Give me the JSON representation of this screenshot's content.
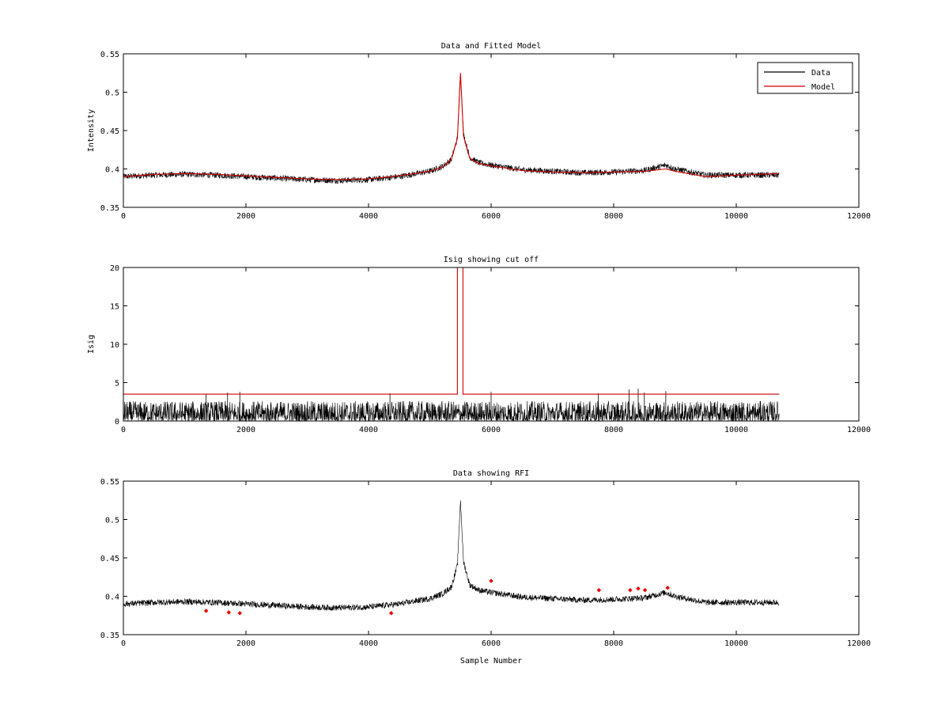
{
  "chart_data": [
    {
      "type": "line",
      "title": "Data and Fitted Model",
      "xlabel": "",
      "ylabel": "Intensity",
      "xlim": [
        0,
        12000
      ],
      "ylim": [
        0.35,
        0.55
      ],
      "xticks": [
        0,
        2000,
        4000,
        6000,
        8000,
        10000,
        12000
      ],
      "xtick_labels": [
        "0",
        "2000",
        "4000",
        "6000",
        "8000",
        "10000",
        "12000"
      ],
      "yticks": [
        0.35,
        0.4,
        0.45,
        0.5,
        0.55
      ],
      "ytick_labels": [
        "0.35",
        "0.4",
        "0.45",
        "0.5",
        "0.55"
      ],
      "legend": {
        "position": "top-right",
        "entries": [
          "Data",
          "Model"
        ]
      },
      "series": [
        {
          "name": "Data",
          "color": "#000000",
          "noise": 0.004,
          "x": [
            0,
            500,
            1000,
            1500,
            2000,
            2500,
            3000,
            3500,
            4000,
            4500,
            5000,
            5200,
            5350,
            5450,
            5500,
            5550,
            5650,
            5800,
            6000,
            6500,
            7000,
            7500,
            8000,
            8500,
            8850,
            9000,
            9500,
            10000,
            10700
          ],
          "y": [
            0.39,
            0.392,
            0.393,
            0.392,
            0.39,
            0.388,
            0.386,
            0.385,
            0.386,
            0.39,
            0.397,
            0.403,
            0.412,
            0.44,
            0.525,
            0.445,
            0.415,
            0.408,
            0.405,
            0.399,
            0.397,
            0.395,
            0.396,
            0.398,
            0.405,
            0.4,
            0.392,
            0.392,
            0.392
          ]
        },
        {
          "name": "Model",
          "color": "#cc0000",
          "x": [
            0,
            500,
            1000,
            1500,
            2000,
            2500,
            3000,
            3500,
            4000,
            4500,
            5000,
            5200,
            5350,
            5450,
            5500,
            5550,
            5650,
            5800,
            6000,
            6500,
            7000,
            7500,
            8000,
            8500,
            8850,
            9000,
            9500,
            10000,
            10700
          ],
          "y": [
            0.39,
            0.393,
            0.394,
            0.393,
            0.391,
            0.389,
            0.387,
            0.386,
            0.387,
            0.391,
            0.397,
            0.402,
            0.412,
            0.44,
            0.525,
            0.443,
            0.414,
            0.407,
            0.404,
            0.398,
            0.396,
            0.395,
            0.396,
            0.397,
            0.4,
            0.397,
            0.39,
            0.392,
            0.394
          ]
        }
      ]
    },
    {
      "type": "line",
      "title": "Isig showing cut off",
      "xlabel": "",
      "ylabel": "Isig",
      "xlim": [
        0,
        12000
      ],
      "ylim": [
        0,
        20
      ],
      "xticks": [
        0,
        2000,
        4000,
        6000,
        8000,
        10000,
        12000
      ],
      "xtick_labels": [
        "0",
        "2000",
        "4000",
        "6000",
        "8000",
        "10000",
        "12000"
      ],
      "yticks": [
        0,
        5,
        10,
        15,
        20
      ],
      "ytick_labels": [
        "0",
        "5",
        "10",
        "15",
        "20"
      ],
      "series": [
        {
          "name": "Isig",
          "color": "#000000",
          "noise_max": 2.6,
          "x_range": [
            0,
            10700
          ],
          "spikes": [
            {
              "x": 1350,
              "y": 3.5
            },
            {
              "x": 1700,
              "y": 3.7
            },
            {
              "x": 1900,
              "y": 3.8
            },
            {
              "x": 4350,
              "y": 3.6
            },
            {
              "x": 6000,
              "y": 3.8
            },
            {
              "x": 7750,
              "y": 3.6
            },
            {
              "x": 8250,
              "y": 4.1
            },
            {
              "x": 8400,
              "y": 4.2
            },
            {
              "x": 8500,
              "y": 3.7
            },
            {
              "x": 8850,
              "y": 3.9
            }
          ]
        },
        {
          "name": "Cut off",
          "color": "#cc0000",
          "x": [
            0,
            5450,
            5450,
            5540,
            5540,
            10700
          ],
          "y": [
            3.5,
            3.5,
            20,
            20,
            3.5,
            3.5
          ]
        }
      ]
    },
    {
      "type": "line",
      "title": "Data showing RFI",
      "xlabel": "Sample Number",
      "ylabel": "",
      "xlim": [
        0,
        12000
      ],
      "ylim": [
        0.35,
        0.55
      ],
      "xticks": [
        0,
        2000,
        4000,
        6000,
        8000,
        10000,
        12000
      ],
      "xtick_labels": [
        "0",
        "2000",
        "4000",
        "6000",
        "8000",
        "10000",
        "12000"
      ],
      "yticks": [
        0.35,
        0.4,
        0.45,
        0.5,
        0.55
      ],
      "ytick_labels": [
        "0.35",
        "0.4",
        "0.45",
        "0.5",
        "0.55"
      ],
      "series": [
        {
          "name": "Data",
          "color": "#000000",
          "noise": 0.004,
          "x": [
            0,
            500,
            1000,
            1500,
            2000,
            2500,
            3000,
            3500,
            4000,
            4500,
            5000,
            5200,
            5350,
            5450,
            5500,
            5550,
            5650,
            5800,
            6000,
            6500,
            7000,
            7500,
            8000,
            8500,
            8850,
            9000,
            9500,
            10000,
            10700
          ],
          "y": [
            0.39,
            0.392,
            0.393,
            0.392,
            0.39,
            0.388,
            0.386,
            0.385,
            0.386,
            0.39,
            0.397,
            0.403,
            0.412,
            0.44,
            0.525,
            0.445,
            0.415,
            0.408,
            0.405,
            0.399,
            0.397,
            0.395,
            0.396,
            0.398,
            0.405,
            0.4,
            0.392,
            0.392,
            0.392
          ]
        },
        {
          "name": "RFI",
          "color": "#ee0000",
          "type": "scatter",
          "x": [
            1350,
            1720,
            1900,
            4370,
            6000,
            7760,
            8270,
            8400,
            8510,
            8880
          ],
          "y": [
            0.381,
            0.379,
            0.378,
            0.378,
            0.42,
            0.408,
            0.408,
            0.41,
            0.408,
            0.411
          ]
        }
      ]
    }
  ]
}
